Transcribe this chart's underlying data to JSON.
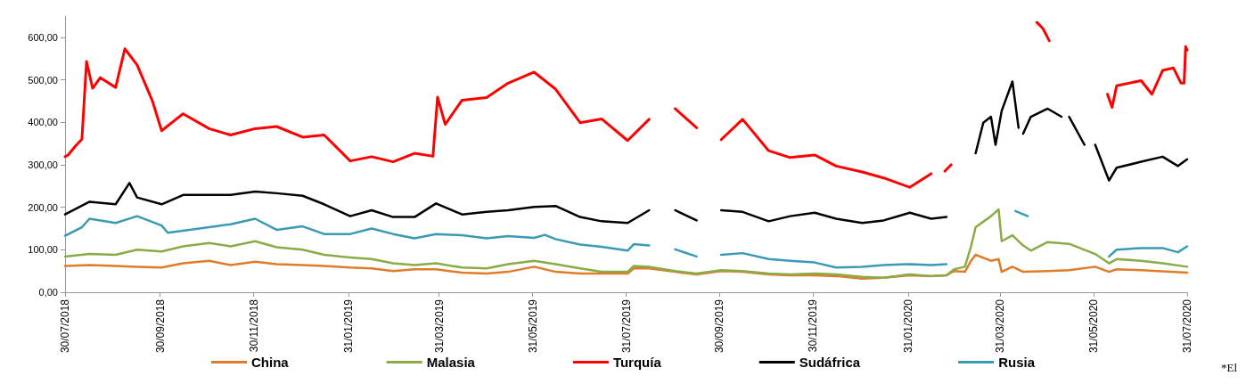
{
  "chart_data": {
    "type": "line",
    "xlim": [
      "2018-07-30",
      "2020-07-31"
    ],
    "xticks": [
      {
        "value": "2018-07-30",
        "label": "30/07/2018"
      },
      {
        "value": "2018-09-30",
        "label": "30/09/2018"
      },
      {
        "value": "2018-11-30",
        "label": "30/11/2018"
      },
      {
        "value": "2019-01-31",
        "label": "31/01/2019"
      },
      {
        "value": "2019-03-31",
        "label": "31/03/2019"
      },
      {
        "value": "2019-05-31",
        "label": "31/05/2019"
      },
      {
        "value": "2019-07-31",
        "label": "31/07/2019"
      },
      {
        "value": "2019-09-30",
        "label": "30/09/2019"
      },
      {
        "value": "2019-11-30",
        "label": "30/11/2019"
      },
      {
        "value": "2020-01-31",
        "label": "31/01/2020"
      },
      {
        "value": "2020-03-31",
        "label": "31/03/2020"
      },
      {
        "value": "2020-05-31",
        "label": "31/05/2020"
      },
      {
        "value": "2020-07-31",
        "label": "31/07/2020"
      }
    ],
    "ylim": [
      0,
      650
    ],
    "yticks": [
      {
        "value": 0,
        "label": "0,00"
      },
      {
        "value": 100,
        "label": "100,00"
      },
      {
        "value": 200,
        "label": "200,00"
      },
      {
        "value": 300,
        "label": "300,00"
      },
      {
        "value": 400,
        "label": "400,00"
      },
      {
        "value": 500,
        "label": "500,00"
      },
      {
        "value": 600,
        "label": "600,00"
      }
    ],
    "grid": false,
    "legend": "bottom",
    "marker": "none",
    "line_style": "solid",
    "annotations": [
      "*El"
    ],
    "series": [
      {
        "name": "China",
        "color": "#e07b2a",
        "x": [
          "2018-07-30",
          "2018-08-15",
          "2018-09-01",
          "2018-09-15",
          "2018-10-01",
          "2018-10-15",
          "2018-11-01",
          "2018-11-15",
          "2018-12-01",
          "2018-12-15",
          "2019-01-01",
          "2019-01-15",
          "2019-02-01",
          "2019-02-15",
          "2019-03-01",
          "2019-03-15",
          "2019-03-29",
          "2019-04-15",
          "2019-05-01",
          "2019-05-15",
          "2019-06-01",
          "2019-06-15",
          "2019-07-01",
          "2019-07-15",
          "2019-08-01",
          "2019-08-05",
          "2019-08-15",
          "2019-09-01",
          "2019-09-15",
          "2019-10-01",
          "2019-10-15",
          "2019-11-01",
          "2019-11-15",
          "2019-12-01",
          "2019-12-15",
          "2020-01-01",
          "2020-01-15",
          "2020-02-01",
          "2020-02-15",
          "2020-02-25",
          "2020-03-01",
          "2020-03-08",
          "2020-03-12",
          "2020-03-15",
          "2020-03-25",
          "2020-03-30",
          "2020-04-01",
          "2020-04-08",
          "2020-04-15",
          "2020-05-01",
          "2020-05-15",
          "2020-06-01",
          "2020-06-10",
          "2020-06-15",
          "2020-07-01",
          "2020-07-31"
        ],
        "values": [
          62,
          64,
          62,
          60,
          58,
          68,
          74,
          64,
          72,
          66,
          64,
          62,
          58,
          56,
          50,
          54,
          54,
          46,
          44,
          48,
          60,
          48,
          44,
          44,
          44,
          56,
          56,
          48,
          42,
          50,
          48,
          42,
          40,
          40,
          38,
          32,
          34,
          40,
          38,
          40,
          50,
          48,
          74,
          88,
          74,
          78,
          48,
          60,
          48,
          50,
          52,
          60,
          48,
          54,
          52,
          46
        ]
      },
      {
        "name": "Malasia",
        "color": "#8aab45",
        "x": [
          "2018-07-30",
          "2018-08-15",
          "2018-09-01",
          "2018-09-15",
          "2018-10-01",
          "2018-10-15",
          "2018-11-01",
          "2018-11-15",
          "2018-12-01",
          "2018-12-15",
          "2019-01-01",
          "2019-01-15",
          "2019-02-01",
          "2019-02-15",
          "2019-03-01",
          "2019-03-15",
          "2019-03-29",
          "2019-04-15",
          "2019-05-01",
          "2019-05-15",
          "2019-06-01",
          "2019-06-15",
          "2019-07-01",
          "2019-07-15",
          "2019-08-01",
          "2019-08-05",
          "2019-08-15",
          "2019-09-01",
          "2019-09-15",
          "2019-10-01",
          "2019-10-15",
          "2019-11-01",
          "2019-11-15",
          "2019-12-01",
          "2019-12-15",
          "2020-01-01",
          "2020-01-15",
          "2020-02-01",
          "2020-02-15",
          "2020-02-25",
          "2020-03-01",
          "2020-03-08",
          "2020-03-12",
          "2020-03-15",
          "2020-03-25",
          "2020-03-30",
          "2020-04-01",
          "2020-04-08",
          "2020-04-15",
          "2020-04-20",
          "2020-05-01",
          "2020-05-15",
          "2020-06-01",
          "2020-06-10",
          "2020-06-15",
          "2020-07-01",
          "2020-07-15",
          "2020-07-31"
        ],
        "values": [
          84,
          90,
          88,
          100,
          96,
          108,
          116,
          108,
          120,
          106,
          100,
          88,
          82,
          78,
          68,
          64,
          68,
          58,
          56,
          66,
          74,
          66,
          56,
          48,
          48,
          62,
          60,
          50,
          44,
          52,
          50,
          44,
          42,
          44,
          42,
          36,
          34,
          42,
          38,
          40,
          54,
          60,
          108,
          153,
          179,
          195,
          120,
          134,
          110,
          98,
          118,
          114,
          90,
          68,
          78,
          74,
          68,
          60
        ]
      },
      {
        "name": "Turquía",
        "color": "#ff0000",
        "x": [
          "2018-07-30",
          "2018-08-01",
          "2018-08-06",
          "2018-08-10",
          "2018-08-13",
          "2018-08-17",
          "2018-08-22",
          "2018-09-01",
          "2018-09-07",
          "2018-09-15",
          "2018-09-25",
          "2018-10-01",
          "2018-10-15",
          "2018-11-01",
          "2018-11-15",
          "2018-12-01",
          "2018-12-15",
          "2019-01-01",
          "2019-01-15",
          "2019-02-01",
          "2019-02-15",
          "2019-03-01",
          "2019-03-15",
          "2019-03-27",
          "2019-03-30",
          "2019-04-04",
          "2019-04-15",
          "2019-05-01",
          "2019-05-15",
          "2019-06-01",
          "2019-06-15",
          "2019-07-01",
          "2019-07-15",
          "2019-08-01",
          "2019-08-15",
          "2019-08-25",
          "2019-09-01",
          "2019-09-15",
          "2019-09-24",
          "2019-10-01",
          "2019-10-15",
          "2019-11-01",
          "2019-11-15",
          "2019-12-01",
          "2019-12-15",
          "2020-01-01",
          "2020-01-15",
          "2020-02-01",
          "2020-02-15",
          "2020-02-20",
          "2020-02-24",
          "2020-02-28",
          "2020-03-05",
          "2020-04-24",
          "2020-04-28",
          "2020-05-02",
          "2020-05-20",
          "2020-06-09",
          "2020-06-12",
          "2020-06-15",
          "2020-07-01",
          "2020-07-08",
          "2020-07-15",
          "2020-07-22",
          "2020-07-27",
          "2020-07-29",
          "2020-07-30",
          "2020-07-31"
        ],
        "values": [
          319,
          323,
          345,
          360,
          543,
          480,
          505,
          482,
          573,
          535,
          450,
          380,
          420,
          385,
          370,
          385,
          390,
          365,
          370,
          309,
          319,
          307,
          327,
          320,
          459,
          395,
          452,
          458,
          492,
          518,
          478,
          399,
          408,
          357,
          407,
          null,
          432,
          387,
          null,
          359,
          407,
          333,
          317,
          323,
          297,
          283,
          269,
          247,
          279,
          null,
          285,
          300,
          null,
          635,
          620,
          592,
          null,
          466,
          435,
          486,
          498,
          466,
          522,
          528,
          492,
          492,
          578,
          570
        ]
      },
      {
        "name": "Sudáfrica",
        "color": "#000000",
        "x": [
          "2018-07-30",
          "2018-08-15",
          "2018-09-01",
          "2018-09-10",
          "2018-09-15",
          "2018-10-01",
          "2018-10-15",
          "2018-11-01",
          "2018-11-15",
          "2018-12-01",
          "2018-12-15",
          "2019-01-01",
          "2019-01-15",
          "2019-02-01",
          "2019-02-15",
          "2019-03-01",
          "2019-03-15",
          "2019-03-29",
          "2019-04-15",
          "2019-05-01",
          "2019-05-15",
          "2019-06-01",
          "2019-06-15",
          "2019-07-01",
          "2019-07-15",
          "2019-08-01",
          "2019-08-15",
          "2019-08-25",
          "2019-09-01",
          "2019-09-15",
          "2019-09-24",
          "2019-10-01",
          "2019-10-15",
          "2019-11-01",
          "2019-11-15",
          "2019-12-01",
          "2019-12-15",
          "2020-01-01",
          "2020-01-15",
          "2020-02-01",
          "2020-02-15",
          "2020-02-25",
          "2020-03-05",
          "2020-03-15",
          "2020-03-20",
          "2020-03-25",
          "2020-03-28",
          "2020-04-01",
          "2020-04-08",
          "2020-04-12",
          "2020-04-13",
          "2020-04-15",
          "2020-04-20",
          "2020-05-01",
          "2020-05-10",
          "2020-05-12",
          "2020-05-15",
          "2020-05-25",
          "2020-05-28",
          "2020-06-01",
          "2020-06-10",
          "2020-06-15",
          "2020-07-01",
          "2020-07-15",
          "2020-07-25",
          "2020-07-31"
        ],
        "values": [
          183,
          213,
          207,
          257,
          223,
          207,
          229,
          229,
          229,
          237,
          233,
          227,
          207,
          179,
          193,
          177,
          177,
          209,
          183,
          189,
          193,
          201,
          203,
          177,
          167,
          163,
          193,
          null,
          193,
          169,
          null,
          193,
          189,
          167,
          179,
          187,
          173,
          163,
          169,
          187,
          173,
          177,
          null,
          327,
          399,
          413,
          347,
          427,
          496,
          387,
          null,
          373,
          413,
          432,
          413,
          null,
          413,
          347,
          null,
          347,
          263,
          293,
          307,
          319,
          297,
          313
        ]
      },
      {
        "name": "Rusia",
        "color": "#3a9ab5",
        "x": [
          "2018-07-30",
          "2018-08-10",
          "2018-08-15",
          "2018-09-01",
          "2018-09-15",
          "2018-10-01",
          "2018-10-05",
          "2018-11-01",
          "2018-11-15",
          "2018-12-01",
          "2018-12-15",
          "2019-01-01",
          "2019-01-15",
          "2019-02-01",
          "2019-02-15",
          "2019-03-01",
          "2019-03-15",
          "2019-03-29",
          "2019-04-15",
          "2019-05-01",
          "2019-05-15",
          "2019-06-01",
          "2019-06-08",
          "2019-06-15",
          "2019-07-01",
          "2019-07-15",
          "2019-08-01",
          "2019-08-05",
          "2019-08-15",
          "2019-08-25",
          "2019-09-01",
          "2019-09-15",
          "2019-09-24",
          "2019-10-01",
          "2019-10-15",
          "2019-11-01",
          "2019-11-15",
          "2019-12-01",
          "2019-12-15",
          "2020-01-01",
          "2020-01-15",
          "2020-02-01",
          "2020-02-15",
          "2020-02-25",
          "2020-03-15",
          "2020-04-10",
          "2020-04-18",
          "2020-05-15",
          "2020-06-10",
          "2020-06-15",
          "2020-07-01",
          "2020-07-15",
          "2020-07-25",
          "2020-07-31"
        ],
        "values": [
          133,
          153,
          173,
          163,
          179,
          157,
          140,
          153,
          160,
          173,
          147,
          155,
          137,
          137,
          150,
          137,
          127,
          137,
          134,
          127,
          132,
          128,
          135,
          125,
          112,
          107,
          98,
          113,
          110,
          null,
          101,
          84,
          null,
          88,
          92,
          78,
          74,
          70,
          58,
          60,
          64,
          66,
          64,
          66,
          null,
          191,
          179,
          null,
          84,
          100,
          104,
          104,
          94,
          108
        ]
      }
    ]
  }
}
